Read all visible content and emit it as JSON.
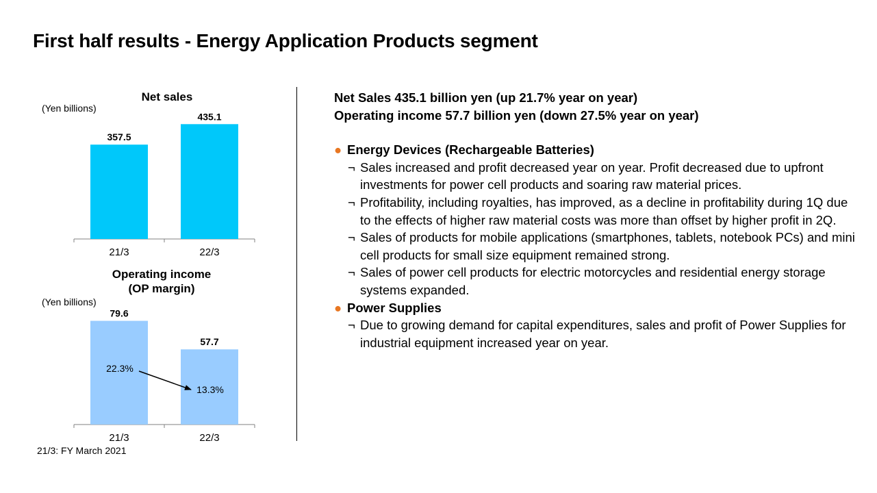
{
  "page": {
    "title": "First half results - Energy Application Products segment",
    "footnote": "21/3: FY March 2021"
  },
  "colors": {
    "net_sales_bar": "#00c8fa",
    "op_income_bar": "#99ccff",
    "bullet": "#e87722"
  },
  "chart_data": [
    {
      "type": "bar",
      "title": "Net sales",
      "unit_label": "(Yen billions)",
      "categories": [
        "21/3",
        "22/3"
      ],
      "values": [
        357.5,
        435.1
      ],
      "value_labels": [
        "357.5",
        "435.1"
      ],
      "ylim": [
        0,
        480
      ]
    },
    {
      "type": "bar",
      "title": "Operating income (OP margin)",
      "title_lines": [
        "Operating income",
        "(OP margin)"
      ],
      "unit_label": "(Yen billions)",
      "categories": [
        "21/3",
        "22/3"
      ],
      "values": [
        79.6,
        57.7
      ],
      "value_labels": [
        "79.6",
        "57.7"
      ],
      "margins": [
        "22.3%",
        "13.3%"
      ],
      "ylim": [
        0,
        82
      ]
    }
  ],
  "summary": {
    "net_sales_line": "Net Sales  435.1 billion yen (up 21.7% year on year)",
    "operating_income_line": "Operating income  57.7 billion yen (down 27.5% year on year)"
  },
  "sections": [
    {
      "bullet": "●",
      "heading": "Energy Devices (Rechargeable Batteries)",
      "items": [
        {
          "mark": "¬",
          "text": "Sales increased and profit decreased year on year. Profit decreased due to upfront investments for power cell products and soaring raw material prices."
        },
        {
          "mark": "¬",
          "text": "Profitability, including royalties, has improved, as a decline in profitability during 1Q due to the effects of higher raw material costs was more than offset by higher profit in 2Q."
        },
        {
          "mark": "¬",
          "text": "Sales of products for mobile applications (smartphones, tablets, notebook PCs) and mini cell products for small size equipment remained strong."
        },
        {
          "mark": "¬",
          "text": "Sales of power cell products for electric motorcycles and residential energy storage systems expanded."
        }
      ]
    },
    {
      "bullet": "●",
      "heading": "Power Supplies",
      "items": [
        {
          "mark": "¬",
          "text": "Due to growing demand for capital expenditures, sales and profit of Power Supplies for industrial equipment increased year on year."
        }
      ]
    }
  ]
}
